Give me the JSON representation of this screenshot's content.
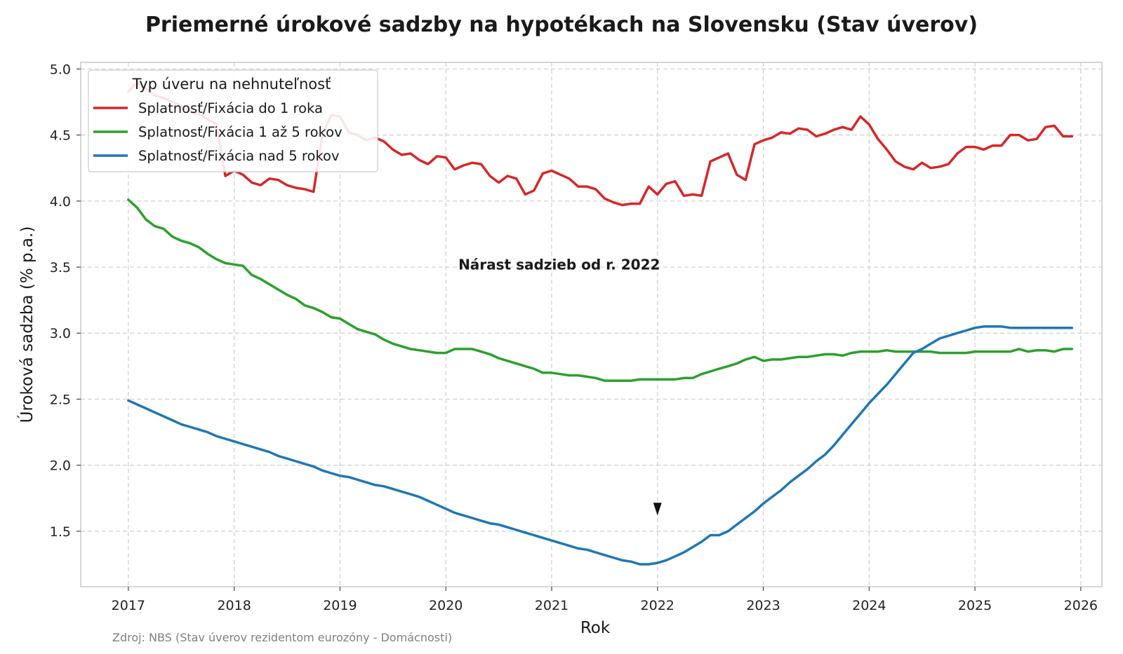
{
  "chart_data": {
    "type": "line",
    "title": "Priemerné úrokové sadzby na hypotékach na Slovensku (Stav úverov)",
    "xlabel": "Rok",
    "ylabel": "Úroková sadzba (% p.a.)",
    "xlim": [
      2016.55,
      2026.2
    ],
    "ylim": [
      1.08,
      5.05
    ],
    "x_ticks": [
      2017,
      2018,
      2019,
      2020,
      2021,
      2022,
      2023,
      2024,
      2025,
      2026
    ],
    "y_ticks": [
      1.5,
      2.0,
      2.5,
      3.0,
      3.5,
      4.0,
      4.5,
      5.0
    ],
    "y_tick_labels": [
      "1.5",
      "2.0",
      "2.5",
      "3.0",
      "3.5",
      "4.0",
      "4.5",
      "5.0"
    ],
    "grid": true,
    "legend": {
      "title": "Typ úveru na nehnuteľnosť",
      "position": "top-left"
    },
    "annotation": {
      "text": "Nárast sadzieb od r. 2022",
      "text_x": 2022.0,
      "text_y": 3.52,
      "arrow_x": 2022.0,
      "arrow_y": 1.62
    },
    "source": "Zdroj: NBS (Stav úverov rezidentom eurozóny - Domácnosti)",
    "series": [
      {
        "name": "Splatnosť/Fixácia do 1 roka",
        "color": "#d62728",
        "x": [
          2017.0,
          2017.083,
          2017.167,
          2017.25,
          2017.333,
          2017.417,
          2017.5,
          2017.583,
          2017.667,
          2017.75,
          2017.833,
          2017.917,
          2018.0,
          2018.083,
          2018.167,
          2018.25,
          2018.333,
          2018.417,
          2018.5,
          2018.583,
          2018.667,
          2018.75,
          2018.833,
          2018.917,
          2019.0,
          2019.083,
          2019.167,
          2019.25,
          2019.333,
          2019.417,
          2019.5,
          2019.583,
          2019.667,
          2019.75,
          2019.833,
          2019.917,
          2020.0,
          2020.083,
          2020.167,
          2020.25,
          2020.333,
          2020.417,
          2020.5,
          2020.583,
          2020.667,
          2020.75,
          2020.833,
          2020.917,
          2021.0,
          2021.083,
          2021.167,
          2021.25,
          2021.333,
          2021.417,
          2021.5,
          2021.583,
          2021.667,
          2021.75,
          2021.833,
          2021.917,
          2022.0,
          2022.083,
          2022.167,
          2022.25,
          2022.333,
          2022.417,
          2022.5,
          2022.583,
          2022.667,
          2022.75,
          2022.833,
          2022.917,
          2023.0,
          2023.083,
          2023.167,
          2023.25,
          2023.333,
          2023.417,
          2023.5,
          2023.583,
          2023.667,
          2023.75,
          2023.833,
          2023.917,
          2024.0,
          2024.083,
          2024.167,
          2024.25,
          2024.333,
          2024.417,
          2024.5,
          2024.583,
          2024.667,
          2024.75,
          2024.833,
          2024.917,
          2025.0,
          2025.083,
          2025.167,
          2025.25,
          2025.333,
          2025.417,
          2025.5,
          2025.583,
          2025.667,
          2025.75,
          2025.833,
          2025.917
        ],
        "values": [
          4.83,
          4.9,
          4.85,
          4.8,
          4.78,
          4.75,
          4.72,
          4.68,
          4.66,
          4.62,
          4.58,
          4.19,
          4.23,
          4.2,
          4.14,
          4.12,
          4.17,
          4.16,
          4.12,
          4.1,
          4.09,
          4.07,
          4.5,
          4.65,
          4.64,
          4.52,
          4.5,
          4.46,
          4.48,
          4.45,
          4.39,
          4.35,
          4.36,
          4.31,
          4.28,
          4.34,
          4.33,
          4.24,
          4.27,
          4.29,
          4.28,
          4.19,
          4.14,
          4.19,
          4.17,
          4.05,
          4.08,
          4.21,
          4.23,
          4.2,
          4.17,
          4.11,
          4.11,
          4.09,
          4.02,
          3.99,
          3.97,
          3.98,
          3.98,
          4.11,
          4.05,
          4.13,
          4.15,
          4.04,
          4.05,
          4.04,
          4.3,
          4.33,
          4.36,
          4.2,
          4.16,
          4.43,
          4.46,
          4.48,
          4.52,
          4.51,
          4.55,
          4.54,
          4.49,
          4.51,
          4.54,
          4.56,
          4.54,
          4.64,
          4.58,
          4.47,
          4.39,
          4.3,
          4.26,
          4.24,
          4.29,
          4.25,
          4.26,
          4.28,
          4.36,
          4.41,
          4.41,
          4.39,
          4.42,
          4.42,
          4.5,
          4.5,
          4.46,
          4.47,
          4.56,
          4.57,
          4.49,
          4.49
        ]
      },
      {
        "name": "Splatnosť/Fixácia 1 až 5 rokov",
        "color": "#2ca02c",
        "x": [
          2017.0,
          2017.083,
          2017.167,
          2017.25,
          2017.333,
          2017.417,
          2017.5,
          2017.583,
          2017.667,
          2017.75,
          2017.833,
          2017.917,
          2018.0,
          2018.083,
          2018.167,
          2018.25,
          2018.333,
          2018.417,
          2018.5,
          2018.583,
          2018.667,
          2018.75,
          2018.833,
          2018.917,
          2019.0,
          2019.083,
          2019.167,
          2019.25,
          2019.333,
          2019.417,
          2019.5,
          2019.583,
          2019.667,
          2019.75,
          2019.833,
          2019.917,
          2020.0,
          2020.083,
          2020.167,
          2020.25,
          2020.333,
          2020.417,
          2020.5,
          2020.583,
          2020.667,
          2020.75,
          2020.833,
          2020.917,
          2021.0,
          2021.083,
          2021.167,
          2021.25,
          2021.333,
          2021.417,
          2021.5,
          2021.583,
          2021.667,
          2021.75,
          2021.833,
          2021.917,
          2022.0,
          2022.083,
          2022.167,
          2022.25,
          2022.333,
          2022.417,
          2022.5,
          2022.583,
          2022.667,
          2022.75,
          2022.833,
          2022.917,
          2023.0,
          2023.083,
          2023.167,
          2023.25,
          2023.333,
          2023.417,
          2023.5,
          2023.583,
          2023.667,
          2023.75,
          2023.833,
          2023.917,
          2024.0,
          2024.083,
          2024.167,
          2024.25,
          2024.333,
          2024.417,
          2024.5,
          2024.583,
          2024.667,
          2024.75,
          2024.833,
          2024.917,
          2025.0,
          2025.083,
          2025.167,
          2025.25,
          2025.333,
          2025.417,
          2025.5,
          2025.583,
          2025.667,
          2025.75,
          2025.833,
          2025.917
        ],
        "values": [
          4.01,
          3.95,
          3.86,
          3.81,
          3.79,
          3.73,
          3.7,
          3.68,
          3.65,
          3.6,
          3.56,
          3.53,
          3.52,
          3.51,
          3.44,
          3.41,
          3.37,
          3.33,
          3.29,
          3.26,
          3.21,
          3.19,
          3.16,
          3.12,
          3.11,
          3.07,
          3.03,
          3.01,
          2.99,
          2.95,
          2.92,
          2.9,
          2.88,
          2.87,
          2.86,
          2.85,
          2.85,
          2.88,
          2.88,
          2.88,
          2.86,
          2.84,
          2.81,
          2.79,
          2.77,
          2.75,
          2.73,
          2.7,
          2.7,
          2.69,
          2.68,
          2.68,
          2.67,
          2.66,
          2.64,
          2.64,
          2.64,
          2.64,
          2.65,
          2.65,
          2.65,
          2.65,
          2.65,
          2.66,
          2.66,
          2.69,
          2.71,
          2.73,
          2.75,
          2.77,
          2.8,
          2.82,
          2.79,
          2.8,
          2.8,
          2.81,
          2.82,
          2.82,
          2.83,
          2.84,
          2.84,
          2.83,
          2.85,
          2.86,
          2.86,
          2.86,
          2.87,
          2.86,
          2.86,
          2.86,
          2.86,
          2.86,
          2.85,
          2.85,
          2.85,
          2.85,
          2.86,
          2.86,
          2.86,
          2.86,
          2.86,
          2.88,
          2.86,
          2.87,
          2.87,
          2.86,
          2.88,
          2.88
        ]
      },
      {
        "name": "Splatnosť/Fixácia nad 5 rokov",
        "color": "#1f77b4",
        "x": [
          2017.0,
          2017.083,
          2017.167,
          2017.25,
          2017.333,
          2017.417,
          2017.5,
          2017.583,
          2017.667,
          2017.75,
          2017.833,
          2017.917,
          2018.0,
          2018.083,
          2018.167,
          2018.25,
          2018.333,
          2018.417,
          2018.5,
          2018.583,
          2018.667,
          2018.75,
          2018.833,
          2018.917,
          2019.0,
          2019.083,
          2019.167,
          2019.25,
          2019.333,
          2019.417,
          2019.5,
          2019.583,
          2019.667,
          2019.75,
          2019.833,
          2019.917,
          2020.0,
          2020.083,
          2020.167,
          2020.25,
          2020.333,
          2020.417,
          2020.5,
          2020.583,
          2020.667,
          2020.75,
          2020.833,
          2020.917,
          2021.0,
          2021.083,
          2021.167,
          2021.25,
          2021.333,
          2021.417,
          2021.5,
          2021.583,
          2021.667,
          2021.75,
          2021.833,
          2021.917,
          2022.0,
          2022.083,
          2022.167,
          2022.25,
          2022.333,
          2022.417,
          2022.5,
          2022.583,
          2022.667,
          2022.75,
          2022.833,
          2022.917,
          2023.0,
          2023.083,
          2023.167,
          2023.25,
          2023.333,
          2023.417,
          2023.5,
          2023.583,
          2023.667,
          2023.75,
          2023.833,
          2023.917,
          2024.0,
          2024.083,
          2024.167,
          2024.25,
          2024.333,
          2024.417,
          2024.5,
          2024.583,
          2024.667,
          2024.75,
          2024.833,
          2024.917,
          2025.0,
          2025.083,
          2025.167,
          2025.25,
          2025.333,
          2025.417,
          2025.5,
          2025.583,
          2025.667,
          2025.75,
          2025.833,
          2025.917
        ],
        "values": [
          2.49,
          2.46,
          2.43,
          2.4,
          2.37,
          2.34,
          2.31,
          2.29,
          2.27,
          2.25,
          2.22,
          2.2,
          2.18,
          2.16,
          2.14,
          2.12,
          2.1,
          2.07,
          2.05,
          2.03,
          2.01,
          1.99,
          1.96,
          1.94,
          1.92,
          1.91,
          1.89,
          1.87,
          1.85,
          1.84,
          1.82,
          1.8,
          1.78,
          1.76,
          1.73,
          1.7,
          1.67,
          1.64,
          1.62,
          1.6,
          1.58,
          1.56,
          1.55,
          1.53,
          1.51,
          1.49,
          1.47,
          1.45,
          1.43,
          1.41,
          1.39,
          1.37,
          1.36,
          1.34,
          1.32,
          1.3,
          1.28,
          1.27,
          1.25,
          1.25,
          1.26,
          1.28,
          1.31,
          1.34,
          1.38,
          1.42,
          1.47,
          1.47,
          1.5,
          1.55,
          1.6,
          1.65,
          1.71,
          1.76,
          1.81,
          1.87,
          1.92,
          1.97,
          2.03,
          2.08,
          2.15,
          2.23,
          2.31,
          2.39,
          2.47,
          2.54,
          2.61,
          2.69,
          2.77,
          2.85,
          2.88,
          2.92,
          2.96,
          2.98,
          3.0,
          3.02,
          3.04,
          3.05,
          3.05,
          3.05,
          3.04,
          3.04,
          3.04,
          3.04,
          3.04,
          3.04,
          3.04,
          3.04
        ]
      }
    ]
  }
}
